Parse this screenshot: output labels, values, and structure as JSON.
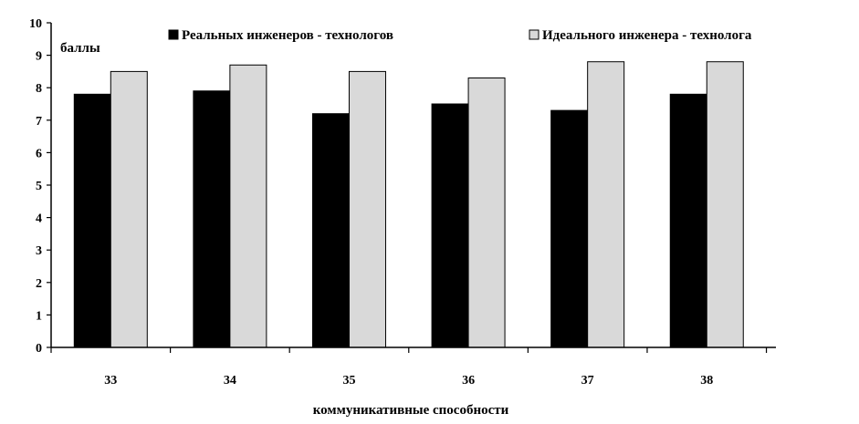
{
  "chart_data": {
    "type": "bar",
    "categories": [
      "33",
      "34",
      "35",
      "36",
      "37",
      "38"
    ],
    "series": [
      {
        "name": "Реальных инженеров - технологов",
        "values": [
          7.8,
          7.9,
          7.2,
          7.5,
          7.3,
          7.8
        ],
        "color": "#000000"
      },
      {
        "name": "Идеального инженера - технолога",
        "values": [
          8.5,
          8.7,
          8.5,
          8.3,
          8.8,
          8.8
        ],
        "color": "#d9d9d9"
      }
    ],
    "title": "",
    "xlabel": "коммуникативные способности",
    "ylabel": "баллы",
    "ylim": [
      0,
      10
    ],
    "yticks": [
      0,
      1,
      2,
      3,
      4,
      5,
      6,
      7,
      8,
      9,
      10
    ],
    "grid": false,
    "legend_position": "top-right"
  }
}
